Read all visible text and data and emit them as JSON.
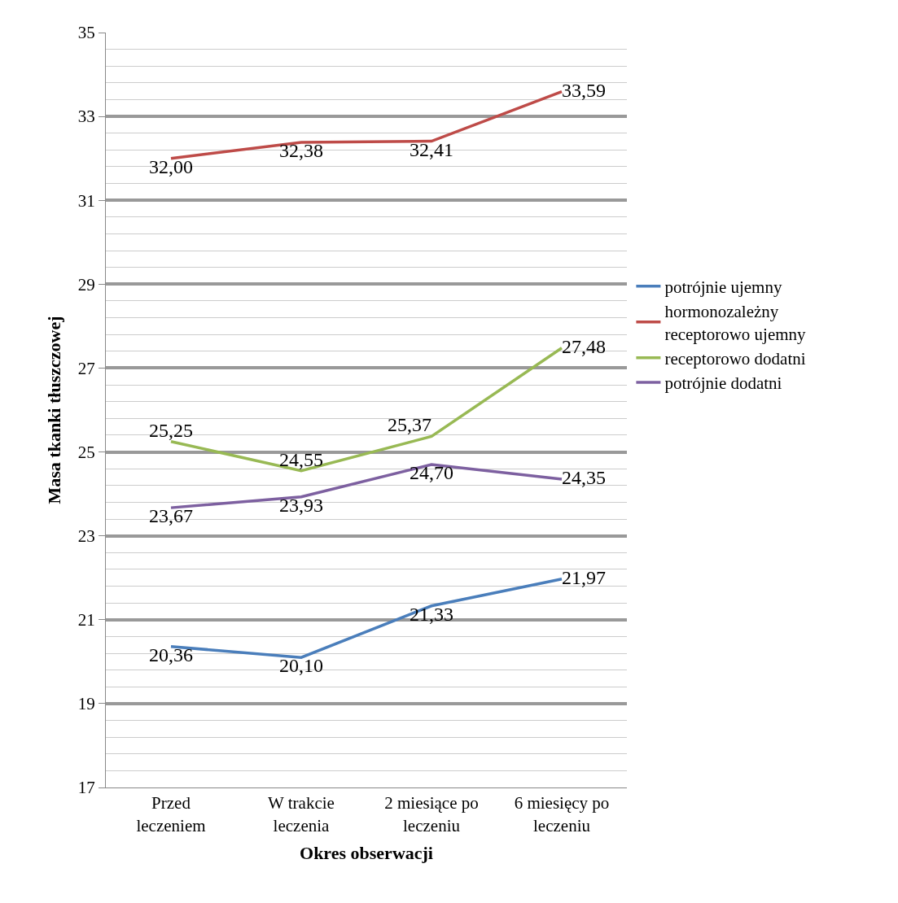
{
  "chart_data": {
    "type": "line",
    "xlabel": "Okres obserwacji",
    "ylabel": "Masa tkanki tłuszczowej",
    "categories": [
      "Przed leczeniem",
      "W trakcie leczenia",
      "2 miesiące po leczeniu",
      "6 miesięcy po leczeniu"
    ],
    "series": [
      {
        "name": "potrójnie ujemny",
        "color": "#4a7ebb",
        "values": [
          20.36,
          20.1,
          21.33,
          21.97
        ],
        "value_labels": [
          "20,36",
          "20,10",
          "21,33",
          "21,97"
        ]
      },
      {
        "name": "hormonozależny receptorowo ujemny",
        "color": "#be4b48",
        "values": [
          32.0,
          32.38,
          32.41,
          33.59
        ],
        "value_labels": [
          "32,00",
          "32,38",
          "32,41",
          "33,59"
        ]
      },
      {
        "name": "receptorowo dodatni",
        "color": "#98b954",
        "values": [
          25.25,
          24.55,
          25.37,
          27.48
        ],
        "value_labels": [
          "25,25",
          "24,55",
          "25,37",
          "27,48"
        ]
      },
      {
        "name": "potrójnie dodatni",
        "color": "#7d60a0",
        "values": [
          23.67,
          23.93,
          24.7,
          24.35
        ],
        "value_labels": [
          "23,67",
          "23,93",
          "24,70",
          "24,35"
        ]
      }
    ],
    "ylim": [
      17,
      35
    ],
    "yticks": [
      17,
      19,
      21,
      23,
      25,
      27,
      29,
      31,
      33,
      35
    ],
    "grid": "y",
    "legend": "right",
    "marker": "none",
    "line_style": "solid"
  }
}
